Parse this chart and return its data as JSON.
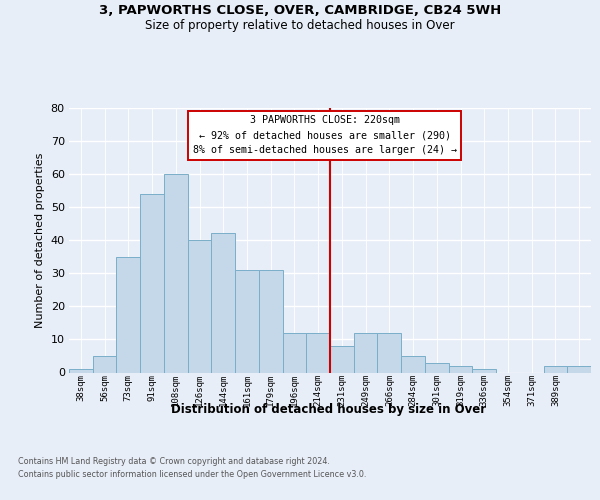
{
  "title1": "3, PAPWORTHS CLOSE, OVER, CAMBRIDGE, CB24 5WH",
  "title2": "Size of property relative to detached houses in Over",
  "xlabel": "Distribution of detached houses by size in Over",
  "ylabel": "Number of detached properties",
  "bar_values": [
    1,
    5,
    35,
    54,
    60,
    40,
    42,
    31,
    31,
    12,
    12,
    8,
    12,
    12,
    5,
    3,
    2,
    1,
    0,
    0,
    2,
    2
  ],
  "bin_labels": [
    "38sqm",
    "56sqm",
    "73sqm",
    "91sqm",
    "108sqm",
    "126sqm",
    "144sqm",
    "161sqm",
    "179sqm",
    "196sqm",
    "214sqm",
    "231sqm",
    "249sqm",
    "266sqm",
    "284sqm",
    "301sqm",
    "319sqm",
    "336sqm",
    "354sqm",
    "371sqm",
    "389sqm",
    ""
  ],
  "bar_color": "#c5d8ea",
  "bar_edge_color": "#7aaec8",
  "ylim": [
    0,
    80
  ],
  "yticks": [
    0,
    10,
    20,
    30,
    40,
    50,
    60,
    70,
    80
  ],
  "vline_x": 10.5,
  "vline_color": "#cc0000",
  "annotation_line1": "3 PAPWORTHS CLOSE: 220sqm",
  "annotation_line2": "← 92% of detached houses are smaller (290)",
  "annotation_line3": "8% of semi-detached houses are larger (24) →",
  "footer_text": "Contains HM Land Registry data © Crown copyright and database right 2024.\nContains public sector information licensed under the Open Government Licence v3.0.",
  "background_color": "#e8eef8"
}
